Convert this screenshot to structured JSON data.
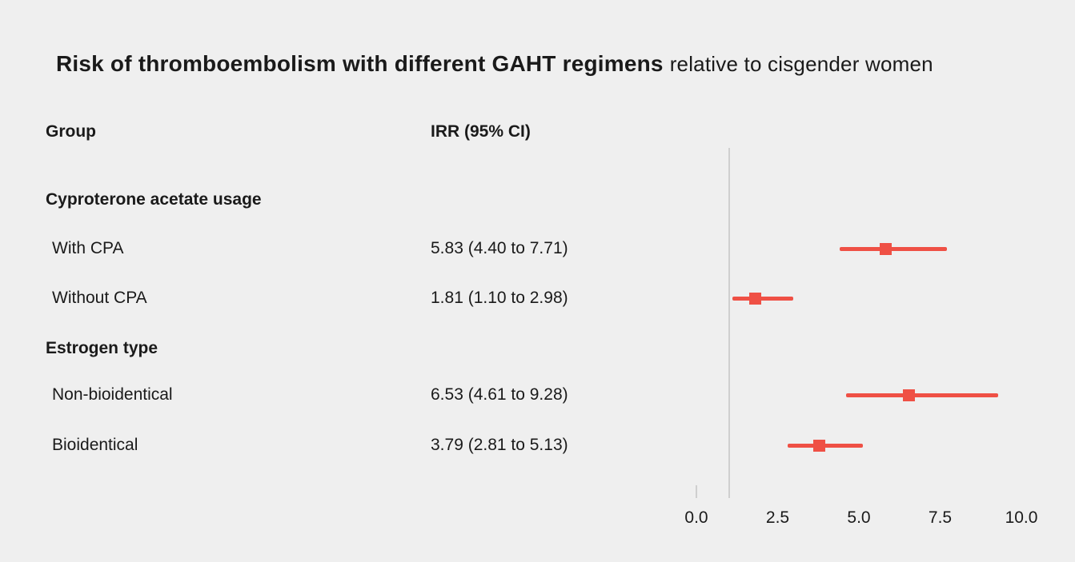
{
  "title": {
    "main": "Risk of thromboembolism with different GAHT regimens",
    "suffix": "relative to cisgender women"
  },
  "columns": {
    "group": "Group",
    "irr": "IRR (95% CI)"
  },
  "rows": [
    {
      "type": "group_header",
      "label": "Cyproterone acetate usage"
    },
    {
      "type": "data",
      "label": "With CPA",
      "irr_text": "5.83 (4.40 to 7.71)"
    },
    {
      "type": "data",
      "label": "Without CPA",
      "irr_text": "1.81 (1.10 to 2.98)"
    },
    {
      "type": "group_header",
      "label": "Estrogen type"
    },
    {
      "type": "data",
      "label": "Non-bioidentical",
      "irr_text": "6.53 (4.61 to 9.28)"
    },
    {
      "type": "data",
      "label": "Bioidentical",
      "irr_text": "3.79 (2.81 to 5.13)"
    }
  ],
  "colors": {
    "background": "#efefef",
    "marker": "#ef5045",
    "reference_line": "#cfcfcf",
    "text": "#1a1a1a"
  },
  "chart_data": {
    "type": "scatter",
    "subtype": "forest_plot",
    "title": "Risk of thromboembolism with different GAHT regimens relative to cisgender women",
    "xlabel": "IRR (95% CI)",
    "ylabel": "",
    "xlim": [
      0,
      10
    ],
    "x_tick_values": [
      0,
      2.5,
      5,
      7.5,
      10
    ],
    "x_tick_labels": [
      "0.0",
      "2.5",
      "5.0",
      "7.5",
      "10.0"
    ],
    "reference_line_x": 1.0,
    "grid": false,
    "legend": "none",
    "marker_color": "#ef5045",
    "marker_shape": "square",
    "points": [
      {
        "group": "Cyproterone acetate usage",
        "label": "With CPA",
        "estimate": 5.83,
        "ci_low": 4.4,
        "ci_high": 7.71
      },
      {
        "group": "Cyproterone acetate usage",
        "label": "Without CPA",
        "estimate": 1.81,
        "ci_low": 1.1,
        "ci_high": 2.98
      },
      {
        "group": "Estrogen type",
        "label": "Non-bioidentical",
        "estimate": 6.53,
        "ci_low": 4.61,
        "ci_high": 9.28
      },
      {
        "group": "Estrogen type",
        "label": "Bioidentical",
        "estimate": 3.79,
        "ci_low": 2.81,
        "ci_high": 5.13
      }
    ]
  }
}
